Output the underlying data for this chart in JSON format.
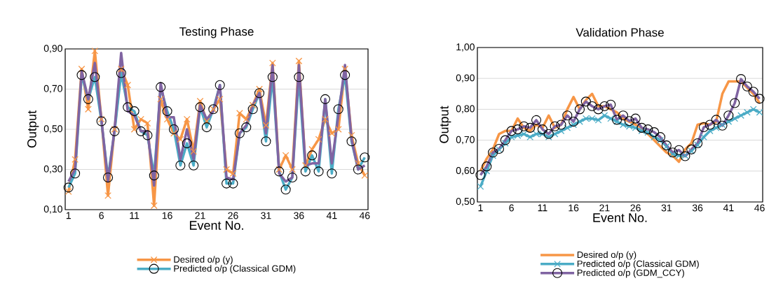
{
  "chart_data": [
    {
      "type": "line",
      "title": "Testing Phase",
      "xlabel": "Event No.",
      "ylabel": "Output",
      "categories": [
        "1",
        null,
        null,
        null,
        null,
        "6",
        null,
        null,
        null,
        null,
        "11",
        null,
        null,
        null,
        null,
        "16",
        null,
        null,
        null,
        null,
        "21",
        null,
        null,
        null,
        null,
        "26",
        null,
        null,
        null,
        null,
        "31",
        null,
        null,
        null,
        null,
        "36",
        null,
        null,
        null,
        null,
        "41",
        null,
        null,
        null,
        null,
        "46"
      ],
      "ylim": [
        0.1,
        0.9
      ],
      "yticks": [
        {
          "value": 0.1,
          "label": "0,10"
        },
        {
          "value": 0.3,
          "label": "0,30"
        },
        {
          "value": 0.5,
          "label": "0,50"
        },
        {
          "value": 0.7,
          "label": "0,70"
        },
        {
          "value": 0.9,
          "label": "0,90"
        }
      ],
      "grid": "y",
      "legend": "bottom",
      "series": [
        {
          "name": "Desired o/p (y)",
          "color": "#f79646",
          "marker": "cross",
          "values": [
            0.19,
            0.35,
            0.8,
            0.6,
            0.89,
            0.55,
            0.17,
            0.5,
            0.8,
            0.72,
            0.5,
            0.55,
            0.53,
            0.12,
            0.65,
            0.55,
            0.48,
            0.45,
            0.55,
            0.39,
            0.64,
            0.54,
            0.6,
            0.65,
            0.3,
            0.28,
            0.58,
            0.55,
            0.62,
            0.7,
            0.52,
            0.83,
            0.3,
            0.37,
            0.3,
            0.84,
            0.32,
            0.4,
            0.45,
            0.55,
            0.48,
            0.5,
            0.8,
            0.47,
            0.33,
            0.27
          ]
        },
        {
          "name": "Predicted o/p (Classical GDM)",
          "color": "#4bacc6",
          "marker": "circle",
          "values": [
            0.21,
            0.28,
            0.77,
            0.65,
            0.76,
            0.54,
            0.26,
            0.49,
            0.78,
            0.61,
            0.59,
            0.49,
            0.47,
            0.27,
            0.71,
            0.59,
            0.5,
            0.32,
            0.43,
            0.32,
            0.61,
            0.51,
            0.6,
            0.72,
            0.23,
            0.23,
            0.48,
            0.51,
            0.6,
            0.68,
            0.44,
            0.76,
            0.29,
            0.2,
            0.26,
            0.76,
            0.29,
            0.37,
            0.29,
            0.65,
            0.28,
            0.6,
            0.77,
            0.44,
            0.3,
            0.36
          ]
        },
        {
          "color": "#8064a2",
          "marker": "none",
          "values": [
            0.24,
            0.3,
            0.79,
            0.65,
            0.83,
            0.55,
            0.24,
            0.5,
            0.88,
            0.59,
            0.57,
            0.49,
            0.49,
            0.22,
            0.73,
            0.56,
            0.56,
            0.35,
            0.5,
            0.35,
            0.62,
            0.55,
            0.59,
            0.72,
            0.26,
            0.25,
            0.48,
            0.52,
            0.62,
            0.68,
            0.48,
            0.82,
            0.28,
            0.24,
            0.26,
            0.82,
            0.32,
            0.33,
            0.33,
            0.65,
            0.33,
            0.57,
            0.82,
            0.45,
            0.3,
            0.32
          ]
        }
      ]
    },
    {
      "type": "line",
      "title": "Validation Phase",
      "xlabel": "Event No.",
      "ylabel": "Output",
      "categories": [
        "1",
        null,
        null,
        null,
        null,
        "6",
        null,
        null,
        null,
        null,
        "11",
        null,
        null,
        null,
        null,
        "16",
        null,
        null,
        null,
        null,
        "21",
        null,
        null,
        null,
        null,
        "26",
        null,
        null,
        null,
        null,
        "31",
        null,
        null,
        null,
        null,
        "36",
        null,
        null,
        null,
        null,
        "41",
        null,
        null,
        null,
        null,
        "46"
      ],
      "ylim": [
        0.5,
        1.0
      ],
      "yticks": [
        {
          "value": 0.5,
          "label": "0,50"
        },
        {
          "value": 0.6,
          "label": "0,60"
        },
        {
          "value": 0.7,
          "label": "0,70"
        },
        {
          "value": 0.8,
          "label": "0,80"
        },
        {
          "value": 0.9,
          "label": "0,90"
        },
        {
          "value": 1.0,
          "label": "1,00"
        }
      ],
      "grid": "y",
      "legend": "bottom",
      "series": [
        {
          "name": "Desired o/p (y)",
          "color": "#f79646",
          "marker": "none",
          "values": [
            0.6,
            0.64,
            0.67,
            0.72,
            0.73,
            0.73,
            0.77,
            0.74,
            0.73,
            0.75,
            0.74,
            0.78,
            0.74,
            0.75,
            0.8,
            0.84,
            0.8,
            0.83,
            0.85,
            0.81,
            0.81,
            0.8,
            0.79,
            0.77,
            0.76,
            0.75,
            0.74,
            0.72,
            0.7,
            0.68,
            0.66,
            0.65,
            0.63,
            0.67,
            0.69,
            0.75,
            0.755,
            0.75,
            0.76,
            0.85,
            0.89,
            0.89,
            0.89,
            0.87,
            0.85,
            0.82
          ]
        },
        {
          "name": "Predicted o/p (Classical GDM)",
          "color": "#4bacc6",
          "marker": "cross",
          "values": [
            0.55,
            0.6,
            0.65,
            0.67,
            0.69,
            0.71,
            0.715,
            0.72,
            0.71,
            0.72,
            0.72,
            0.71,
            0.72,
            0.73,
            0.74,
            0.75,
            0.76,
            0.77,
            0.77,
            0.765,
            0.78,
            0.77,
            0.76,
            0.75,
            0.745,
            0.74,
            0.73,
            0.725,
            0.71,
            0.7,
            0.68,
            0.655,
            0.65,
            0.65,
            0.665,
            0.685,
            0.71,
            0.73,
            0.74,
            0.75,
            0.76,
            0.77,
            0.78,
            0.79,
            0.8,
            0.79
          ]
        },
        {
          "name": "Predicted o/p (GDM_CCY)",
          "color": "#8064a2",
          "marker": "circle",
          "values": [
            0.587,
            0.615,
            0.66,
            0.672,
            0.7,
            0.73,
            0.735,
            0.745,
            0.74,
            0.765,
            0.735,
            0.72,
            0.745,
            0.75,
            0.78,
            0.76,
            0.8,
            0.825,
            0.81,
            0.8,
            0.81,
            0.815,
            0.766,
            0.78,
            0.762,
            0.77,
            0.74,
            0.735,
            0.726,
            0.71,
            0.683,
            0.66,
            0.668,
            0.648,
            0.67,
            0.69,
            0.742,
            0.75,
            0.766,
            0.747,
            0.78,
            0.82,
            0.898,
            0.874,
            0.857,
            0.834
          ]
        }
      ]
    }
  ]
}
